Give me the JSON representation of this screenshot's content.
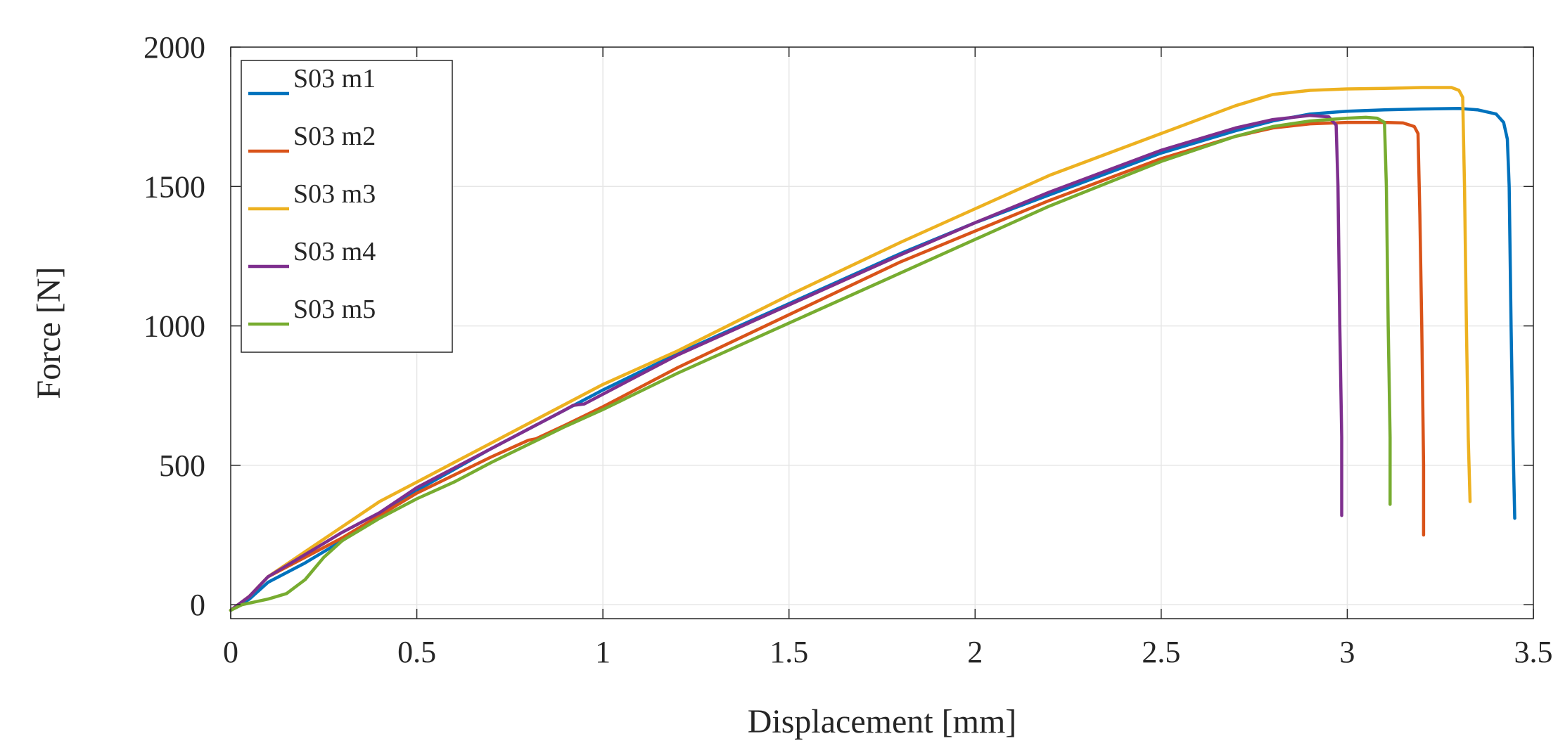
{
  "chart_data": {
    "type": "line",
    "xlabel": "Displacement [mm]",
    "ylabel": "Force [N]",
    "xlim": [
      0,
      3.5
    ],
    "ylim": [
      -50,
      2000
    ],
    "xticks": [
      0,
      0.5,
      1,
      1.5,
      2,
      2.5,
      3,
      3.5
    ],
    "xtick_labels": [
      "0",
      "0.5",
      "1",
      "1.5",
      "2",
      "2.5",
      "3",
      "3.5"
    ],
    "yticks": [
      0,
      500,
      1000,
      1500,
      2000
    ],
    "ytick_labels": [
      "0",
      "500",
      "1000",
      "1500",
      "2000"
    ],
    "grid": true,
    "legend_position": "top-left",
    "series": [
      {
        "name": "S03 m1",
        "color": "#0072BD",
        "points": [
          [
            0,
            -20
          ],
          [
            0.05,
            20
          ],
          [
            0.1,
            80
          ],
          [
            0.2,
            150
          ],
          [
            0.3,
            230
          ],
          [
            0.5,
            410
          ],
          [
            0.7,
            560
          ],
          [
            0.9,
            700
          ],
          [
            1.0,
            770
          ],
          [
            1.2,
            900
          ],
          [
            1.5,
            1080
          ],
          [
            1.8,
            1260
          ],
          [
            2.0,
            1370
          ],
          [
            2.2,
            1470
          ],
          [
            2.5,
            1620
          ],
          [
            2.7,
            1700
          ],
          [
            2.8,
            1735
          ],
          [
            2.9,
            1760
          ],
          [
            3.0,
            1770
          ],
          [
            3.1,
            1775
          ],
          [
            3.2,
            1778
          ],
          [
            3.3,
            1780
          ],
          [
            3.35,
            1775
          ],
          [
            3.4,
            1760
          ],
          [
            3.42,
            1730
          ],
          [
            3.43,
            1670
          ],
          [
            3.435,
            1500
          ],
          [
            3.44,
            1000
          ],
          [
            3.445,
            600
          ],
          [
            3.45,
            310
          ]
        ]
      },
      {
        "name": "S03 m2",
        "color": "#D95319",
        "points": [
          [
            0,
            -20
          ],
          [
            0.05,
            30
          ],
          [
            0.1,
            100
          ],
          [
            0.2,
            170
          ],
          [
            0.3,
            240
          ],
          [
            0.4,
            320
          ],
          [
            0.5,
            400
          ],
          [
            0.7,
            530
          ],
          [
            0.8,
            590
          ],
          [
            0.82,
            595
          ],
          [
            0.9,
            645
          ],
          [
            1.0,
            710
          ],
          [
            1.2,
            850
          ],
          [
            1.5,
            1040
          ],
          [
            1.8,
            1230
          ],
          [
            2.0,
            1340
          ],
          [
            2.2,
            1450
          ],
          [
            2.5,
            1600
          ],
          [
            2.7,
            1680
          ],
          [
            2.8,
            1710
          ],
          [
            2.9,
            1725
          ],
          [
            3.0,
            1730
          ],
          [
            3.1,
            1730
          ],
          [
            3.15,
            1728
          ],
          [
            3.18,
            1715
          ],
          [
            3.19,
            1690
          ],
          [
            3.195,
            1400
          ],
          [
            3.2,
            1000
          ],
          [
            3.205,
            500
          ],
          [
            3.205,
            250
          ]
        ]
      },
      {
        "name": "S03 m3",
        "color": "#EDB120",
        "points": [
          [
            0,
            -20
          ],
          [
            0.05,
            30
          ],
          [
            0.1,
            100
          ],
          [
            0.2,
            190
          ],
          [
            0.3,
            280
          ],
          [
            0.4,
            370
          ],
          [
            0.5,
            440
          ],
          [
            0.7,
            580
          ],
          [
            1.0,
            790
          ],
          [
            1.2,
            910
          ],
          [
            1.5,
            1110
          ],
          [
            1.8,
            1300
          ],
          [
            2.0,
            1420
          ],
          [
            2.2,
            1540
          ],
          [
            2.5,
            1690
          ],
          [
            2.7,
            1790
          ],
          [
            2.8,
            1830
          ],
          [
            2.9,
            1845
          ],
          [
            3.0,
            1850
          ],
          [
            3.1,
            1852
          ],
          [
            3.2,
            1855
          ],
          [
            3.28,
            1855
          ],
          [
            3.3,
            1845
          ],
          [
            3.31,
            1820
          ],
          [
            3.315,
            1500
          ],
          [
            3.32,
            1000
          ],
          [
            3.325,
            600
          ],
          [
            3.33,
            370
          ]
        ]
      },
      {
        "name": "S03 m4",
        "color": "#7E2F8E",
        "points": [
          [
            0,
            -20
          ],
          [
            0.05,
            30
          ],
          [
            0.1,
            100
          ],
          [
            0.2,
            180
          ],
          [
            0.3,
            260
          ],
          [
            0.4,
            330
          ],
          [
            0.5,
            420
          ],
          [
            0.7,
            560
          ],
          [
            0.9,
            700
          ],
          [
            0.92,
            715
          ],
          [
            0.95,
            720
          ],
          [
            1.0,
            755
          ],
          [
            1.2,
            895
          ],
          [
            1.5,
            1075
          ],
          [
            1.8,
            1255
          ],
          [
            2.0,
            1370
          ],
          [
            2.2,
            1480
          ],
          [
            2.5,
            1630
          ],
          [
            2.7,
            1710
          ],
          [
            2.8,
            1740
          ],
          [
            2.9,
            1755
          ],
          [
            2.95,
            1750
          ],
          [
            2.97,
            1720
          ],
          [
            2.975,
            1500
          ],
          [
            2.98,
            1000
          ],
          [
            2.985,
            600
          ],
          [
            2.985,
            320
          ]
        ]
      },
      {
        "name": "S03 m5",
        "color": "#77AC30",
        "points": [
          [
            0,
            -20
          ],
          [
            0.03,
            0
          ],
          [
            0.1,
            20
          ],
          [
            0.15,
            40
          ],
          [
            0.2,
            90
          ],
          [
            0.25,
            170
          ],
          [
            0.3,
            230
          ],
          [
            0.4,
            310
          ],
          [
            0.5,
            380
          ],
          [
            0.6,
            440
          ],
          [
            0.7,
            510
          ],
          [
            0.9,
            640
          ],
          [
            1.0,
            700
          ],
          [
            1.2,
            830
          ],
          [
            1.5,
            1010
          ],
          [
            1.8,
            1190
          ],
          [
            2.0,
            1310
          ],
          [
            2.2,
            1430
          ],
          [
            2.5,
            1590
          ],
          [
            2.7,
            1680
          ],
          [
            2.8,
            1715
          ],
          [
            2.9,
            1735
          ],
          [
            3.0,
            1745
          ],
          [
            3.05,
            1748
          ],
          [
            3.08,
            1745
          ],
          [
            3.1,
            1730
          ],
          [
            3.105,
            1500
          ],
          [
            3.11,
            1000
          ],
          [
            3.115,
            600
          ],
          [
            3.115,
            360
          ]
        ]
      }
    ]
  }
}
